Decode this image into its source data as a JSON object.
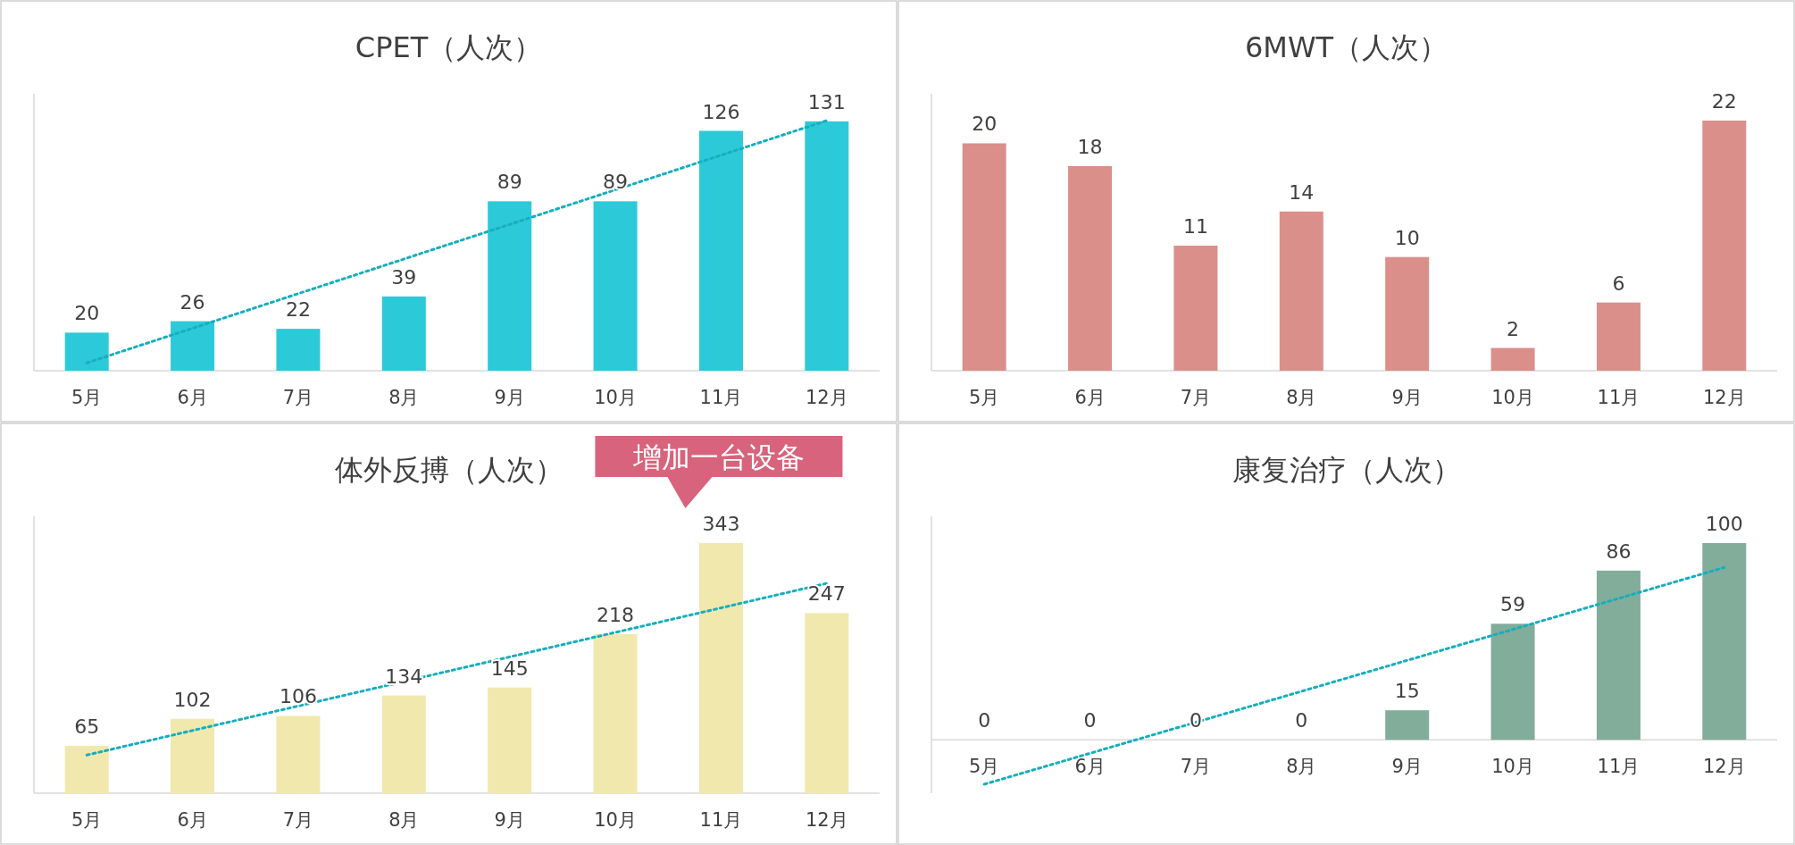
{
  "chart_data": [
    {
      "type": "bar",
      "title": "CPET（人次）",
      "categories": [
        "5月",
        "6月",
        "7月",
        "8月",
        "9月",
        "10月",
        "11月",
        "12月"
      ],
      "series": [
        {
          "type": "bar",
          "color": "#2ccad8",
          "values": [
            20,
            26,
            22,
            39,
            89,
            89,
            126,
            131
          ],
          "value_labels": [
            "20",
            "26",
            "22",
            "39",
            "89",
            "89",
            "126",
            "131"
          ]
        },
        {
          "type": "line",
          "color": "#17aebe",
          "line_style": "dotted",
          "x": [
            "5月",
            "12月"
          ],
          "values": [
            4.1,
            131.4
          ]
        }
      ]
    },
    {
      "type": "bar",
      "title": "6MWT（人次）",
      "categories": [
        "5月",
        "6月",
        "7月",
        "8月",
        "9月",
        "10月",
        "11月",
        "12月"
      ],
      "series": [
        {
          "type": "bar",
          "color": "#db8f8a",
          "values": [
            20,
            18,
            11,
            14,
            10,
            2,
            6,
            22
          ],
          "value_labels": [
            "20",
            "18",
            "11",
            "14",
            "10",
            "2",
            "6",
            "22"
          ]
        }
      ]
    },
    {
      "type": "bar",
      "title": "体外反搏（人次）",
      "categories": [
        "5月",
        "6月",
        "7月",
        "8月",
        "9月",
        "10月",
        "11月",
        "12月"
      ],
      "series": [
        {
          "type": "bar",
          "color": "#f1e8ad",
          "values": [
            65,
            102,
            106,
            134,
            145,
            218,
            343,
            247
          ],
          "value_labels": [
            "65",
            "102",
            "106",
            "134",
            "145",
            "218",
            "343",
            "247"
          ]
        },
        {
          "type": "line",
          "color": "#17aebe",
          "line_style": "dotted",
          "x": [
            "5月",
            "12月"
          ],
          "values": [
            52.3,
            287.8
          ]
        }
      ],
      "annotations": [
        {
          "text": "增加一台设备",
          "x": "11月",
          "y": 343
        }
      ]
    },
    {
      "type": "bar",
      "title": "康复治疗（人次）",
      "categories": [
        "5月",
        "6月",
        "7月",
        "8月",
        "9月",
        "10月",
        "11月",
        "12月"
      ],
      "series": [
        {
          "type": "bar",
          "color": "#82ad9a",
          "values": [
            0,
            0,
            0,
            0,
            15,
            59,
            86,
            100
          ],
          "value_labels": [
            "0",
            "0",
            "0",
            "0",
            "15",
            "59",
            "86",
            "100"
          ]
        },
        {
          "type": "line",
          "color": "#17aebe",
          "line_style": "dotted",
          "x": [
            "5月",
            "12月"
          ],
          "values": [
            -22.6,
            87.6
          ]
        }
      ]
    }
  ]
}
